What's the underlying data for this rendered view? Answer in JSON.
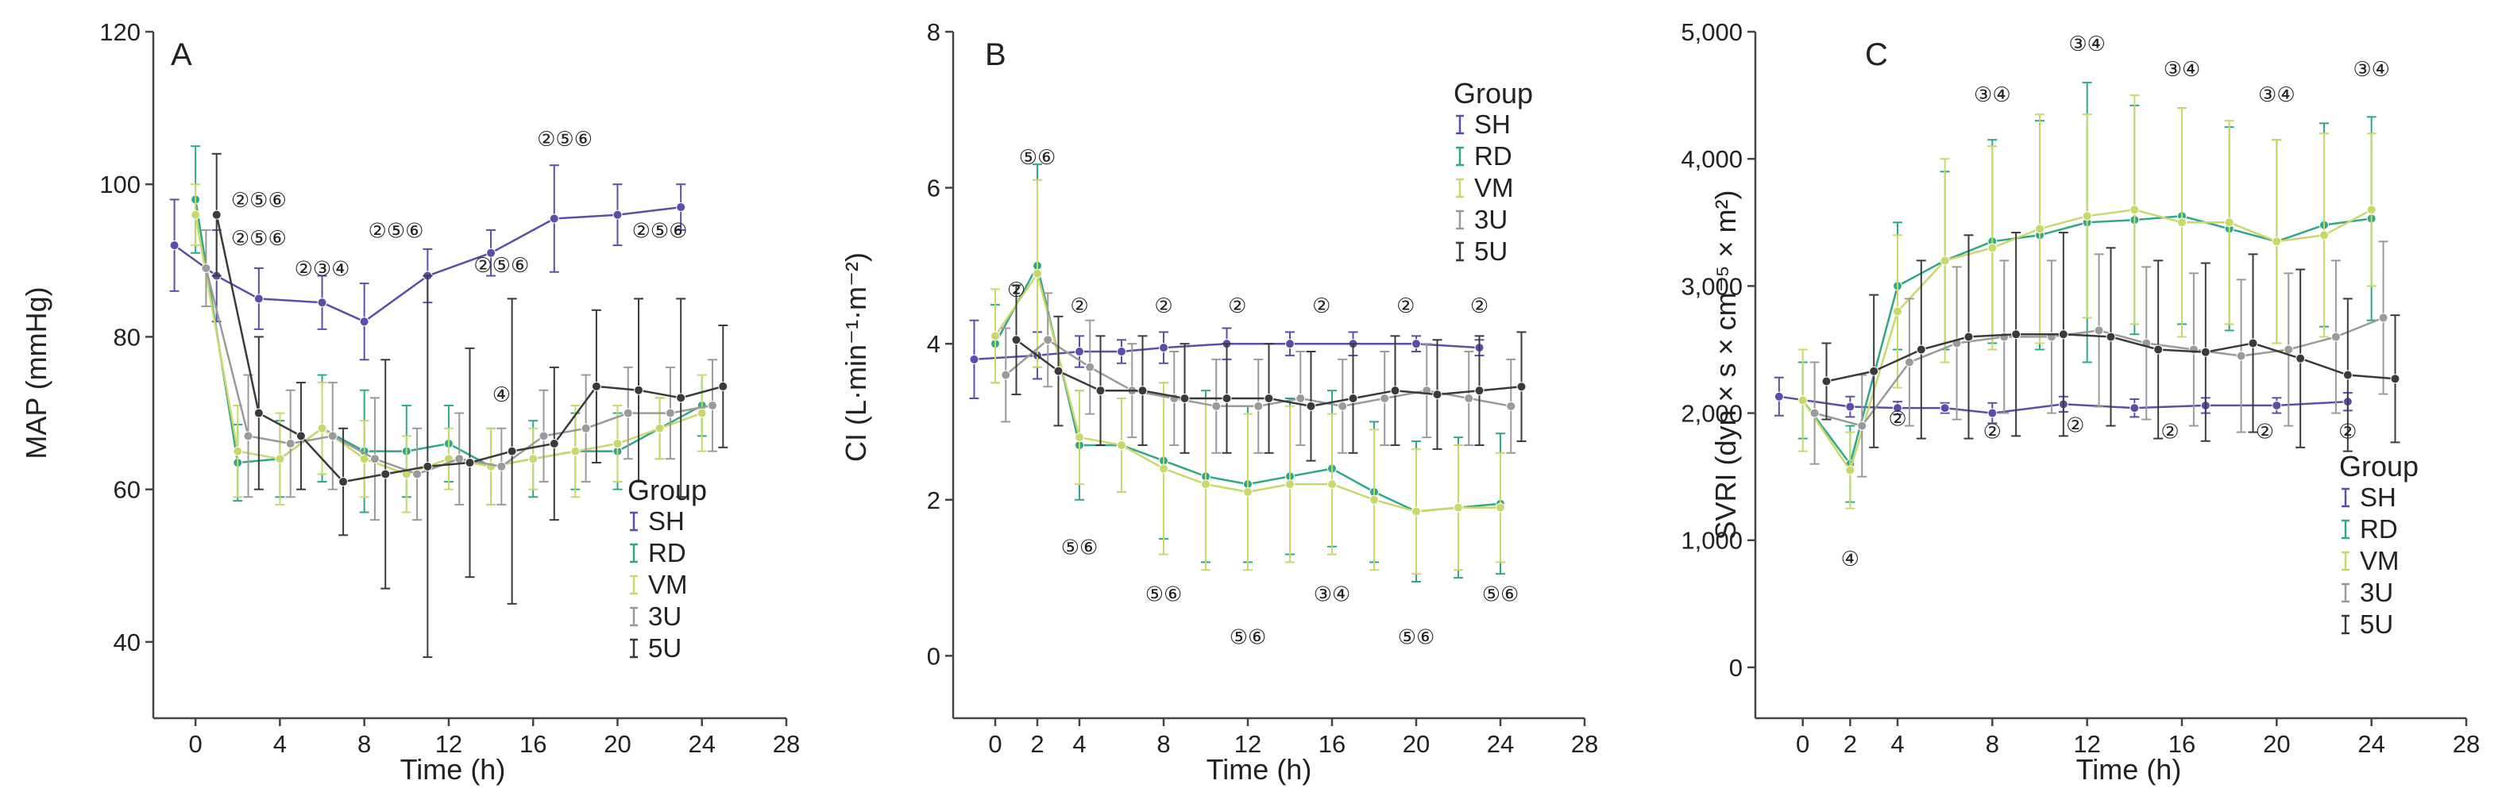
{
  "colors": {
    "SH": "#5a4fa8",
    "RD": "#2ea889",
    "VM": "#c9d86a",
    "3U": "#9a9a9a",
    "5U": "#3a3a3a"
  },
  "chart_data": [
    {
      "type": "line",
      "panel_label": "A",
      "xlabel": "Time (h)",
      "ylabel": "MAP (mmHg)",
      "xlim": [
        -2,
        28
      ],
      "ylim": [
        30,
        120
      ],
      "x_ticks": [
        "0",
        "4",
        "8",
        "12",
        "16",
        "20",
        "24",
        "28"
      ],
      "x_tick_values": [
        0,
        4,
        8,
        12,
        16,
        20,
        24,
        28
      ],
      "y_ticks": [
        "40",
        "60",
        "80",
        "100",
        "120"
      ],
      "y_tick_values": [
        40,
        60,
        80,
        100,
        120
      ],
      "legend": {
        "title": "Group",
        "entries": [
          "SH",
          "RD",
          "VM",
          "3U",
          "5U"
        ],
        "position": "bottom-right"
      },
      "series": [
        {
          "name": "SH",
          "x": [
            -1,
            1,
            3,
            6,
            8,
            11,
            14,
            17,
            20,
            23
          ],
          "y": [
            92,
            88,
            85,
            84.5,
            82,
            88,
            91,
            95.5,
            96,
            97
          ],
          "err": [
            6,
            6,
            4,
            3.5,
            5,
            3.5,
            3,
            7,
            4,
            3
          ]
        },
        {
          "name": "RD",
          "x": [
            0,
            2,
            4,
            6,
            8,
            10,
            12,
            14,
            16,
            18,
            20,
            22,
            24
          ],
          "y": [
            98,
            63.5,
            64,
            68,
            65,
            65,
            66,
            63,
            64,
            65,
            65,
            68,
            71
          ],
          "err": [
            7,
            5,
            5,
            7,
            8,
            6,
            5,
            5,
            5,
            5,
            5,
            4,
            4
          ]
        },
        {
          "name": "VM",
          "x": [
            0,
            2,
            4,
            6,
            8,
            10,
            12,
            14,
            16,
            18,
            20,
            22,
            24
          ],
          "y": [
            96,
            65,
            64,
            68,
            64,
            62,
            64,
            63,
            64,
            65,
            66,
            68,
            70
          ],
          "err": [
            4,
            6,
            6,
            6,
            5,
            5,
            4,
            5,
            4,
            6,
            5,
            4,
            5
          ]
        },
        {
          "name": "3U",
          "x": [
            0.5,
            2.5,
            4.5,
            6.5,
            8.5,
            10.5,
            12.5,
            14.5,
            16.5,
            18.5,
            20.5,
            22.5,
            24.5
          ],
          "y": [
            89,
            67,
            66,
            67,
            64,
            62,
            64,
            63,
            67,
            68,
            70,
            70,
            71
          ],
          "err": [
            5,
            8,
            7,
            7,
            8,
            6,
            6,
            5,
            6,
            7,
            6,
            6,
            6
          ]
        },
        {
          "name": "5U",
          "x": [
            1,
            3,
            5,
            7,
            9,
            11,
            13,
            15,
            17,
            19,
            21,
            23,
            25
          ],
          "y": [
            96,
            70,
            67,
            61,
            62,
            63,
            63.5,
            65,
            66,
            73.5,
            73,
            72,
            73.5
          ],
          "err": [
            8,
            10,
            7,
            7,
            15,
            25,
            15,
            20,
            10,
            10,
            12,
            13,
            8
          ]
        }
      ],
      "annotations": [
        {
          "text": "②⑤⑥",
          "x": 3,
          "y": 97
        },
        {
          "text": "②⑤⑥",
          "x": 3,
          "y": 92
        },
        {
          "text": "②③④",
          "x": 6,
          "y": 88
        },
        {
          "text": "②⑤⑥",
          "x": 9.5,
          "y": 93
        },
        {
          "text": "②⑤⑥",
          "x": 14.5,
          "y": 88.5
        },
        {
          "text": "②⑤⑥",
          "x": 17.5,
          "y": 105
        },
        {
          "text": "②⑤⑥",
          "x": 22,
          "y": 93
        },
        {
          "text": "④",
          "x": 14.5,
          "y": 71.5
        }
      ]
    },
    {
      "type": "line",
      "panel_label": "B",
      "xlabel": "Time (h)",
      "ylabel": "CI (L·min⁻¹·m⁻²)",
      "xlim": [
        -2,
        28
      ],
      "ylim": [
        -0.8,
        8
      ],
      "x_ticks": [
        "0",
        "2",
        "4",
        "8",
        "12",
        "16",
        "20",
        "24",
        "28"
      ],
      "x_tick_values": [
        0,
        2,
        4,
        8,
        12,
        16,
        20,
        24,
        28
      ],
      "y_ticks": [
        "0",
        "2",
        "4",
        "6",
        "8"
      ],
      "y_tick_values": [
        0,
        2,
        4,
        6,
        8
      ],
      "legend": {
        "title": "Group",
        "entries": [
          "SH",
          "RD",
          "VM",
          "3U",
          "5U"
        ],
        "position": "top-right"
      },
      "series": [
        {
          "name": "SH",
          "x": [
            -1,
            2,
            4,
            6,
            8,
            11,
            14,
            17,
            20,
            23
          ],
          "y": [
            3.8,
            3.85,
            3.9,
            3.9,
            3.95,
            4,
            4,
            4,
            4,
            3.95
          ],
          "err": [
            0.5,
            0.3,
            0.2,
            0.15,
            0.2,
            0.2,
            0.15,
            0.15,
            0.1,
            0.1
          ]
        },
        {
          "name": "RD",
          "x": [
            0,
            2,
            4,
            6,
            8,
            10,
            12,
            14,
            16,
            18,
            20,
            22,
            24
          ],
          "y": [
            4,
            5,
            2.7,
            2.7,
            2.5,
            2.3,
            2.2,
            2.3,
            2.4,
            2.1,
            1.85,
            1.9,
            1.95
          ],
          "err": [
            0.5,
            1.3,
            0.7,
            0.6,
            1,
            1.1,
            1,
            1,
            1,
            0.9,
            0.9,
            0.9,
            0.9
          ]
        },
        {
          "name": "VM",
          "x": [
            0,
            2,
            4,
            6,
            8,
            10,
            12,
            14,
            16,
            18,
            20,
            22,
            24
          ],
          "y": [
            4.1,
            4.9,
            2.8,
            2.7,
            2.4,
            2.2,
            2.1,
            2.2,
            2.2,
            2.0,
            1.85,
            1.9,
            1.9
          ],
          "err": [
            0.6,
            1.2,
            0.6,
            0.6,
            1.1,
            1.1,
            1,
            1,
            0.9,
            0.9,
            0.8,
            0.8,
            0.7
          ]
        },
        {
          "name": "3U",
          "x": [
            0.5,
            2.5,
            4.5,
            6.5,
            8.5,
            10.5,
            12.5,
            14.5,
            16.5,
            18.5,
            20.5,
            22.5,
            24.5
          ],
          "y": [
            3.6,
            4.05,
            3.7,
            3.4,
            3.3,
            3.2,
            3.2,
            3.3,
            3.2,
            3.3,
            3.4,
            3.3,
            3.2
          ],
          "err": [
            0.6,
            0.6,
            0.6,
            0.6,
            0.6,
            0.6,
            0.6,
            0.6,
            0.6,
            0.6,
            0.6,
            0.6,
            0.6
          ]
        },
        {
          "name": "5U",
          "x": [
            1,
            3,
            5,
            7,
            9,
            11,
            13,
            15,
            17,
            19,
            21,
            23,
            25
          ],
          "y": [
            4.05,
            3.65,
            3.4,
            3.4,
            3.3,
            3.3,
            3.3,
            3.2,
            3.3,
            3.4,
            3.35,
            3.4,
            3.45
          ],
          "err": [
            0.7,
            0.7,
            0.7,
            0.7,
            0.7,
            0.7,
            0.7,
            0.7,
            0.7,
            0.7,
            0.7,
            0.7,
            0.7
          ]
        }
      ],
      "annotations": [
        {
          "text": "⑤⑥",
          "x": 2,
          "y": 6.3
        },
        {
          "text": "②",
          "x": 1,
          "y": 4.6
        },
        {
          "text": "②",
          "x": 4,
          "y": 4.4
        },
        {
          "text": "②",
          "x": 8,
          "y": 4.4
        },
        {
          "text": "②",
          "x": 11.5,
          "y": 4.4
        },
        {
          "text": "②",
          "x": 15.5,
          "y": 4.4
        },
        {
          "text": "②",
          "x": 19.5,
          "y": 4.4
        },
        {
          "text": "②",
          "x": 23,
          "y": 4.4
        },
        {
          "text": "⑤⑥",
          "x": 4,
          "y": 1.3
        },
        {
          "text": "⑤⑥",
          "x": 8,
          "y": 0.7
        },
        {
          "text": "⑤⑥",
          "x": 12,
          "y": 0.15
        },
        {
          "text": "③④",
          "x": 16,
          "y": 0.7
        },
        {
          "text": "⑤⑥",
          "x": 20,
          "y": 0.15
        },
        {
          "text": "⑤⑥",
          "x": 24,
          "y": 0.7
        }
      ]
    },
    {
      "type": "line",
      "panel_label": "C",
      "xlabel": "Time (h)",
      "ylabel": "SVRI (dyn × s × cm⁻⁵ × m²)",
      "xlim": [
        -2,
        28
      ],
      "ylim": [
        -400,
        5000
      ],
      "x_ticks": [
        "0",
        "2",
        "4",
        "8",
        "12",
        "16",
        "20",
        "24",
        "28"
      ],
      "x_tick_values": [
        0,
        2,
        4,
        8,
        12,
        16,
        20,
        24,
        28
      ],
      "y_ticks": [
        "0",
        "1,000",
        "2,000",
        "3,000",
        "4,000",
        "5,000"
      ],
      "y_tick_values": [
        0,
        1000,
        2000,
        3000,
        4000,
        5000
      ],
      "legend": {
        "title": "Group",
        "entries": [
          "SH",
          "RD",
          "VM",
          "3U",
          "5U"
        ],
        "position": "bottom-right"
      },
      "series": [
        {
          "name": "SH",
          "x": [
            -1,
            2,
            4,
            6,
            8,
            11,
            14,
            17,
            20,
            23
          ],
          "y": [
            2130,
            2050,
            2040,
            2040,
            2000,
            2070,
            2040,
            2060,
            2060,
            2090
          ],
          "err": [
            150,
            80,
            50,
            40,
            80,
            60,
            70,
            60,
            60,
            70
          ]
        },
        {
          "name": "RD",
          "x": [
            0,
            2,
            4,
            6,
            8,
            10,
            12,
            14,
            16,
            18,
            20,
            22,
            24
          ],
          "y": [
            2100,
            1600,
            3000,
            3200,
            3350,
            3400,
            3500,
            3520,
            3550,
            3450,
            3350,
            3480,
            3530
          ],
          "err": [
            300,
            300,
            500,
            700,
            800,
            900,
            1100,
            900,
            850,
            800,
            800,
            800,
            800
          ]
        },
        {
          "name": "VM",
          "x": [
            0,
            2,
            4,
            6,
            8,
            10,
            12,
            14,
            16,
            18,
            20,
            22,
            24
          ],
          "y": [
            2100,
            1550,
            2800,
            3200,
            3300,
            3450,
            3550,
            3600,
            3500,
            3500,
            3350,
            3400,
            3600
          ],
          "err": [
            400,
            300,
            600,
            800,
            800,
            900,
            800,
            900,
            900,
            800,
            800,
            800,
            600
          ]
        },
        {
          "name": "3U",
          "x": [
            0.5,
            2.5,
            4.5,
            6.5,
            8.5,
            10.5,
            12.5,
            14.5,
            16.5,
            18.5,
            20.5,
            22.5,
            24.5
          ],
          "y": [
            2000,
            1900,
            2400,
            2550,
            2600,
            2600,
            2650,
            2550,
            2500,
            2450,
            2500,
            2600,
            2750
          ],
          "err": [
            400,
            400,
            500,
            600,
            600,
            600,
            600,
            600,
            600,
            600,
            600,
            600,
            600
          ]
        },
        {
          "name": "5U",
          "x": [
            1,
            3,
            5,
            7,
            9,
            11,
            13,
            15,
            17,
            19,
            21,
            23,
            25
          ],
          "y": [
            2250,
            2330,
            2500,
            2600,
            2620,
            2620,
            2600,
            2500,
            2480,
            2550,
            2430,
            2300,
            2270
          ],
          "err": [
            300,
            600,
            700,
            800,
            800,
            800,
            700,
            700,
            700,
            700,
            700,
            600,
            500
          ]
        }
      ],
      "annotations": [
        {
          "text": "④",
          "x": 2,
          "y": 800
        },
        {
          "text": "②",
          "x": 4,
          "y": 1900
        },
        {
          "text": "②",
          "x": 8,
          "y": 1800
        },
        {
          "text": "②",
          "x": 11.5,
          "y": 1850
        },
        {
          "text": "②",
          "x": 15.5,
          "y": 1800
        },
        {
          "text": "②",
          "x": 19.5,
          "y": 1800
        },
        {
          "text": "②",
          "x": 23,
          "y": 1800
        },
        {
          "text": "③④",
          "x": 8,
          "y": 4450
        },
        {
          "text": "③④",
          "x": 12,
          "y": 4850
        },
        {
          "text": "③④",
          "x": 16,
          "y": 4650
        },
        {
          "text": "③④",
          "x": 20,
          "y": 4450
        },
        {
          "text": "③④",
          "x": 24,
          "y": 4650
        }
      ]
    }
  ]
}
